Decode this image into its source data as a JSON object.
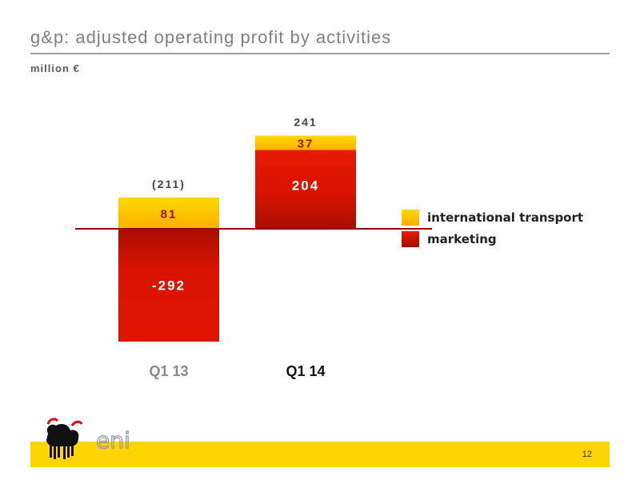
{
  "header": {
    "title": "g&p: adjusted operating profit by activities",
    "unit": "million €"
  },
  "chart_data": {
    "type": "bar",
    "stacked": true,
    "categories": [
      "Q1 13",
      "Q1 14"
    ],
    "series": [
      {
        "name": "international transport",
        "values": [
          81,
          37
        ],
        "color": "#ffc400"
      },
      {
        "name": "marketing",
        "values": [
          -292,
          204
        ],
        "color": "#d81300"
      }
    ],
    "value_labels": {
      "international transport": [
        "81",
        "37"
      ],
      "marketing": [
        "-292",
        "204"
      ]
    },
    "totals": [
      "(211)",
      "241"
    ],
    "ylim": [
      -292,
      241
    ],
    "legend": "right",
    "grid": false,
    "baseline_color": "#a00000"
  },
  "legend": [
    {
      "label": "international transport",
      "color": "#ffc400"
    },
    {
      "label": "marketing",
      "color": "#d81300"
    }
  ],
  "logo": {
    "text": "eni",
    "icon": "six-legged-dog-logo"
  },
  "footer": {
    "page_number": "12",
    "color": "#ffd400"
  }
}
